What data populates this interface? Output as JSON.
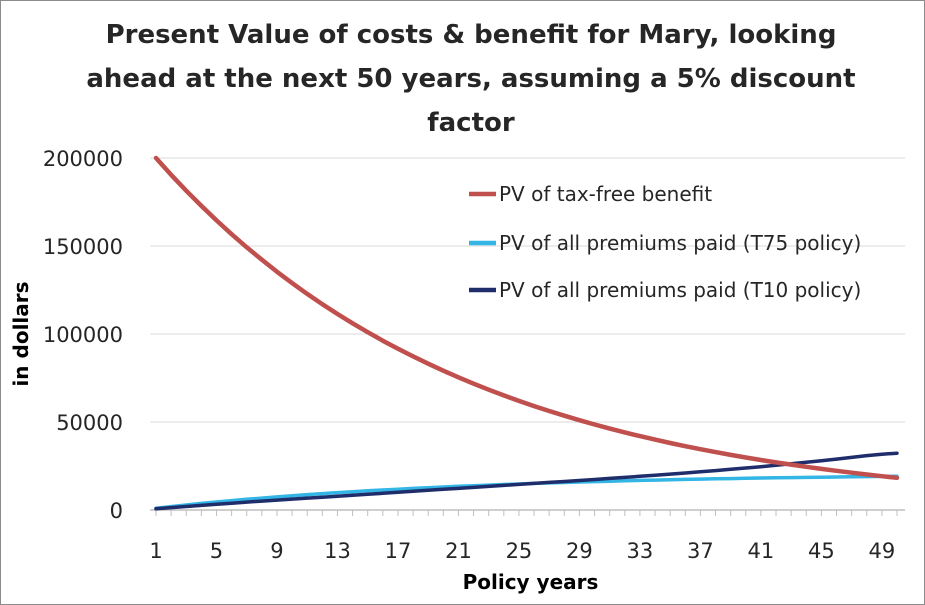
{
  "chart_data": {
    "type": "line",
    "title": "Present Value of costs & benefit for Mary, looking\nahead at the next 50 years, assuming a 5% discount\nfactor",
    "xlabel": "Policy years",
    "ylabel": "in dollars",
    "x": [
      1,
      2,
      3,
      4,
      5,
      6,
      7,
      8,
      9,
      10,
      11,
      12,
      13,
      14,
      15,
      16,
      17,
      18,
      19,
      20,
      21,
      22,
      23,
      24,
      25,
      26,
      27,
      28,
      29,
      30,
      31,
      32,
      33,
      34,
      35,
      36,
      37,
      38,
      39,
      40,
      41,
      42,
      43,
      44,
      45,
      46,
      47,
      48,
      49,
      50
    ],
    "x_tick_labels": [
      "1",
      "5",
      "9",
      "13",
      "17",
      "21",
      "25",
      "29",
      "33",
      "37",
      "41",
      "45",
      "49"
    ],
    "x_tick_values": [
      1,
      5,
      9,
      13,
      17,
      21,
      25,
      29,
      33,
      37,
      41,
      45,
      49
    ],
    "y_tick_labels": [
      "0",
      "50000",
      "100000",
      "150000",
      "200000"
    ],
    "y_tick_values": [
      0,
      50000,
      100000,
      150000,
      200000
    ],
    "ylim": [
      0,
      200000
    ],
    "grid": "horizontal",
    "legend_position": "top-right",
    "series": [
      {
        "name": "PV of tax-free benefit",
        "color": "#c0504d",
        "values": [
          200000,
          190476,
          181406,
          172768,
          164540,
          156705,
          149243,
          142136,
          135368,
          128922,
          122783,
          116936,
          111368,
          106065,
          101014,
          96204,
          91622,
          87259,
          83104,
          79147,
          75378,
          71789,
          68370,
          65114,
          62014,
          59061,
          56248,
          53570,
          51019,
          48589,
          46276,
          44072,
          41973,
          39975,
          38071,
          36258,
          34531,
          32887,
          31321,
          29829,
          28409,
          27056,
          25768,
          24541,
          23372,
          22259,
          21199,
          20190,
          19228,
          18313
        ]
      },
      {
        "name": "PV of all premiums paid (T75 policy)",
        "color": "#33b5e5",
        "values": [
          1000,
          1952,
          2859,
          3723,
          4546,
          5330,
          6076,
          6787,
          7463,
          8108,
          8722,
          9306,
          9863,
          10394,
          10899,
          11380,
          11838,
          12274,
          12690,
          13085,
          13462,
          13821,
          14163,
          14488,
          14798,
          15094,
          15375,
          15643,
          15898,
          16141,
          16372,
          16593,
          16803,
          17003,
          17193,
          17374,
          17547,
          17711,
          17868,
          18017,
          18159,
          18294,
          18423,
          18546,
          18663,
          18774,
          18880,
          18981,
          19077,
          19169
        ]
      },
      {
        "name": "PV of all premiums paid (T10 policy)",
        "color": "#1f2d6b",
        "values": [
          680,
          1350,
          2000,
          2640,
          3270,
          3880,
          4480,
          5060,
          5630,
          6190,
          6750,
          7300,
          7850,
          8400,
          8950,
          9500,
          10060,
          10620,
          11180,
          11740,
          12300,
          12860,
          13420,
          13980,
          14540,
          15100,
          15660,
          16220,
          16780,
          17350,
          17930,
          18520,
          19120,
          19740,
          20370,
          21020,
          21690,
          22380,
          23100,
          23840,
          24610,
          25410,
          26240,
          27100,
          28000,
          28930,
          29900,
          30900,
          31700,
          32300
        ]
      }
    ]
  }
}
